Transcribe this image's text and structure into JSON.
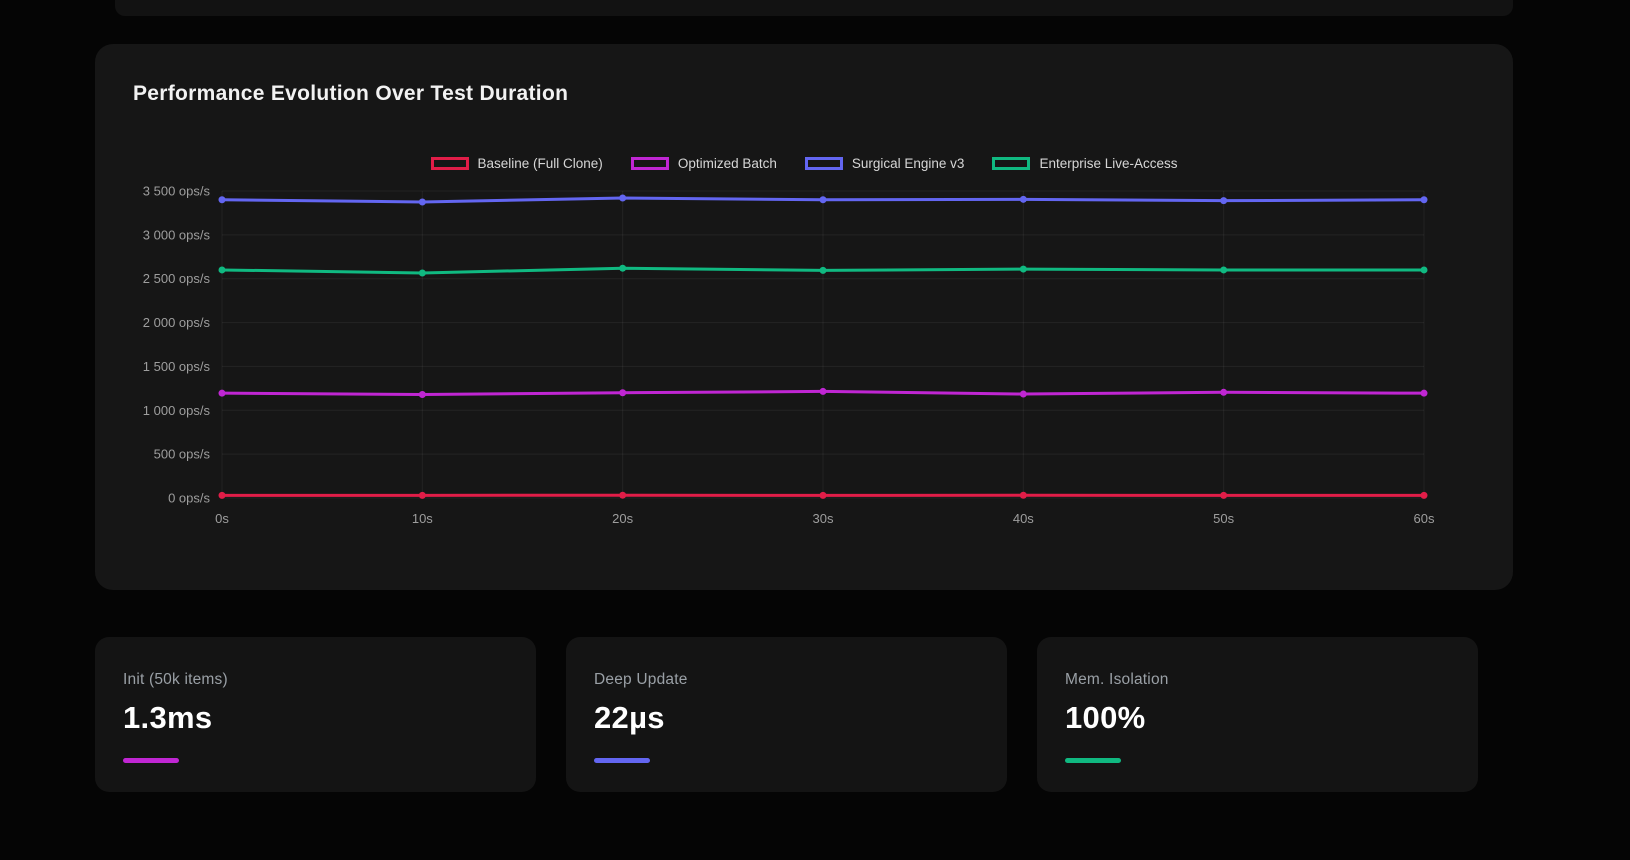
{
  "page": {
    "background": "#050505",
    "card_background": "#161616"
  },
  "chart_card": {
    "title": "Performance Evolution Over Test Duration"
  },
  "chart_data": {
    "type": "line",
    "title": "Performance Evolution Over Test Duration",
    "x": [
      0,
      10,
      20,
      30,
      40,
      50,
      60
    ],
    "x_tick_labels": [
      "0s",
      "10s",
      "20s",
      "30s",
      "40s",
      "50s",
      "60s"
    ],
    "y_tick_labels": [
      "0 ops/s",
      "500 ops/s",
      "1 000 ops/s",
      "1 500 ops/s",
      "2 000 ops/s",
      "2 500 ops/s",
      "3 000 ops/s",
      "3 500 ops/s"
    ],
    "ylim": [
      0,
      3500
    ],
    "y_tick_step": 500,
    "xlabel": "",
    "ylabel": "ops/s",
    "grid": true,
    "legend_position": "top",
    "series": [
      {
        "name": "Baseline (Full Clone)",
        "color": "#e11d48",
        "values": [
          30,
          30,
          32,
          30,
          31,
          30,
          30
        ]
      },
      {
        "name": "Optimized Batch",
        "color": "#c026d3",
        "values": [
          1195,
          1180,
          1200,
          1215,
          1185,
          1205,
          1195
        ]
      },
      {
        "name": "Surgical Engine v3",
        "color": "#6366f1",
        "values": [
          3400,
          3375,
          3420,
          3400,
          3405,
          3390,
          3400
        ]
      },
      {
        "name": "Enterprise Live-Access",
        "color": "#10b981",
        "values": [
          2600,
          2565,
          2620,
          2595,
          2610,
          2600,
          2600
        ]
      }
    ]
  },
  "stats": [
    {
      "label": "Init (50k items)",
      "value": "1.3ms",
      "accent": "#c026d3"
    },
    {
      "label": "Deep Update",
      "value": "22µs",
      "accent": "#6366f1"
    },
    {
      "label": "Mem. Isolation",
      "value": "100%",
      "accent": "#10b981"
    }
  ]
}
